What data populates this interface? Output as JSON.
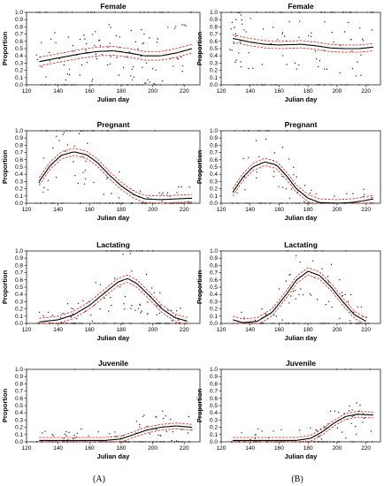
{
  "colors": {
    "fit": "#000000",
    "ci": "#e8302a",
    "points": "#222222"
  },
  "column_labels": [
    "(A)",
    "(B)"
  ],
  "chart_data": [
    {
      "id": "A-female",
      "type": "scatter",
      "title": "Female",
      "xlabel": "Julian day",
      "ylabel": "Proportion",
      "xlim": [
        120,
        230
      ],
      "ylim": [
        0,
        1
      ],
      "xticks": [
        120,
        140,
        160,
        180,
        200,
        220
      ],
      "yticks": [
        0.0,
        0.1,
        0.2,
        0.3,
        0.4,
        0.5,
        0.6,
        0.7,
        0.8,
        0.9,
        1.0
      ],
      "fit": [
        [
          128,
          0.32
        ],
        [
          140,
          0.37
        ],
        [
          155,
          0.43
        ],
        [
          165,
          0.46
        ],
        [
          175,
          0.47
        ],
        [
          185,
          0.44
        ],
        [
          195,
          0.4
        ],
        [
          205,
          0.4
        ],
        [
          215,
          0.44
        ],
        [
          225,
          0.5
        ]
      ],
      "ci_width": 0.06,
      "scatter": {
        "x_range": [
          126,
          225
        ],
        "n": 160,
        "seed": 11,
        "pattern": "female_a"
      }
    },
    {
      "id": "B-female",
      "type": "scatter",
      "title": "Female",
      "xlabel": "Julian day",
      "ylabel": "Proportion",
      "xlim": [
        120,
        230
      ],
      "ylim": [
        0,
        1
      ],
      "xticks": [
        120,
        140,
        160,
        180,
        200,
        220
      ],
      "yticks": [
        0.0,
        0.1,
        0.2,
        0.3,
        0.4,
        0.5,
        0.6,
        0.7,
        0.8,
        0.9,
        1.0
      ],
      "fit": [
        [
          128,
          0.64
        ],
        [
          140,
          0.59
        ],
        [
          150,
          0.56
        ],
        [
          160,
          0.55
        ],
        [
          175,
          0.56
        ],
        [
          185,
          0.54
        ],
        [
          195,
          0.51
        ],
        [
          205,
          0.5
        ],
        [
          215,
          0.5
        ],
        [
          225,
          0.52
        ]
      ],
      "ci_width": 0.05,
      "scatter": {
        "x_range": [
          126,
          225
        ],
        "n": 130,
        "seed": 23,
        "pattern": "female_b"
      }
    },
    {
      "id": "A-pregnant",
      "type": "scatter",
      "title": "Pregnant",
      "xlabel": "Julian day",
      "ylabel": "Proportion",
      "xlim": [
        120,
        230
      ],
      "ylim": [
        0,
        1
      ],
      "xticks": [
        120,
        140,
        160,
        180,
        200,
        220
      ],
      "yticks": [
        0.0,
        0.1,
        0.2,
        0.3,
        0.4,
        0.5,
        0.6,
        0.7,
        0.8,
        0.9,
        1.0
      ],
      "fit": [
        [
          128,
          0.3
        ],
        [
          135,
          0.52
        ],
        [
          142,
          0.66
        ],
        [
          150,
          0.71
        ],
        [
          158,
          0.67
        ],
        [
          165,
          0.56
        ],
        [
          172,
          0.4
        ],
        [
          180,
          0.24
        ],
        [
          188,
          0.12
        ],
        [
          195,
          0.06
        ],
        [
          205,
          0.05
        ],
        [
          215,
          0.06
        ],
        [
          225,
          0.07
        ]
      ],
      "ci_width": 0.05,
      "scatter": {
        "x_range": [
          126,
          225
        ],
        "n": 140,
        "seed": 37,
        "pattern": "pregnant"
      }
    },
    {
      "id": "B-pregnant",
      "type": "scatter",
      "title": "Pregnant",
      "xlabel": "Julian day",
      "ylabel": "Proportion",
      "xlim": [
        120,
        230
      ],
      "ylim": [
        0,
        1
      ],
      "xticks": [
        120,
        140,
        160,
        180,
        200,
        220
      ],
      "yticks": [
        0.0,
        0.1,
        0.2,
        0.3,
        0.4,
        0.5,
        0.6,
        0.7,
        0.8,
        0.9,
        1.0
      ],
      "fit": [
        [
          128,
          0.15
        ],
        [
          135,
          0.36
        ],
        [
          142,
          0.5
        ],
        [
          150,
          0.57
        ],
        [
          158,
          0.53
        ],
        [
          165,
          0.38
        ],
        [
          172,
          0.2
        ],
        [
          180,
          0.07
        ],
        [
          188,
          0.01
        ],
        [
          200,
          0.0
        ],
        [
          210,
          0.01
        ],
        [
          220,
          0.04
        ],
        [
          225,
          0.06
        ]
      ],
      "ci_width": 0.05,
      "scatter": {
        "x_range": [
          126,
          225
        ],
        "n": 110,
        "seed": 41,
        "pattern": "pregnant"
      }
    },
    {
      "id": "A-lactating",
      "type": "scatter",
      "title": "Lactating",
      "xlabel": "Julian day",
      "ylabel": "Proportion",
      "xlim": [
        120,
        230
      ],
      "ylim": [
        0,
        1
      ],
      "xticks": [
        120,
        140,
        160,
        180,
        200,
        220
      ],
      "yticks": [
        0.0,
        0.1,
        0.2,
        0.3,
        0.4,
        0.5,
        0.6,
        0.7,
        0.8,
        0.9,
        1.0
      ],
      "fit": [
        [
          128,
          0.02
        ],
        [
          140,
          0.05
        ],
        [
          150,
          0.12
        ],
        [
          160,
          0.25
        ],
        [
          170,
          0.43
        ],
        [
          178,
          0.57
        ],
        [
          184,
          0.62
        ],
        [
          190,
          0.55
        ],
        [
          198,
          0.38
        ],
        [
          206,
          0.2
        ],
        [
          214,
          0.08
        ],
        [
          222,
          0.03
        ]
      ],
      "ci_width": 0.05,
      "scatter": {
        "x_range": [
          126,
          222
        ],
        "n": 150,
        "seed": 53,
        "pattern": "lactating"
      }
    },
    {
      "id": "B-lactating",
      "type": "scatter",
      "title": "Lactating",
      "xlabel": "Julian day",
      "ylabel": "Proportion",
      "xlim": [
        120,
        230
      ],
      "ylim": [
        0,
        1
      ],
      "xticks": [
        120,
        140,
        160,
        180,
        200,
        220
      ],
      "yticks": [
        0.0,
        0.1,
        0.2,
        0.3,
        0.4,
        0.5,
        0.6,
        0.7,
        0.8,
        0.9,
        1.0
      ],
      "fit": [
        [
          128,
          0.05
        ],
        [
          135,
          0.01
        ],
        [
          145,
          0.03
        ],
        [
          155,
          0.15
        ],
        [
          165,
          0.4
        ],
        [
          172,
          0.6
        ],
        [
          180,
          0.72
        ],
        [
          188,
          0.66
        ],
        [
          196,
          0.5
        ],
        [
          204,
          0.3
        ],
        [
          212,
          0.12
        ],
        [
          220,
          0.03
        ]
      ],
      "ci_width": 0.05,
      "scatter": {
        "x_range": [
          126,
          222
        ],
        "n": 120,
        "seed": 61,
        "pattern": "lactating"
      }
    },
    {
      "id": "A-juvenile",
      "type": "scatter",
      "title": "Juvenile",
      "xlabel": "Julian day",
      "ylabel": "Proportion",
      "xlim": [
        120,
        230
      ],
      "ylim": [
        0,
        1
      ],
      "xticks": [
        120,
        140,
        160,
        180,
        200,
        220
      ],
      "yticks": [
        0.0,
        0.1,
        0.2,
        0.3,
        0.4,
        0.5,
        0.6,
        0.7,
        0.8,
        0.9,
        1.0
      ],
      "fit": [
        [
          128,
          0.02
        ],
        [
          150,
          0.02
        ],
        [
          170,
          0.02
        ],
        [
          180,
          0.04
        ],
        [
          188,
          0.1
        ],
        [
          196,
          0.16
        ],
        [
          205,
          0.2
        ],
        [
          215,
          0.22
        ],
        [
          225,
          0.2
        ]
      ],
      "ci_width": 0.04,
      "scatter": {
        "x_range": [
          126,
          225
        ],
        "n": 160,
        "seed": 73,
        "pattern": "juvenile"
      }
    },
    {
      "id": "B-juvenile",
      "type": "scatter",
      "title": "Juvenile",
      "xlabel": "Julian day",
      "ylabel": "Proportion",
      "xlim": [
        120,
        230
      ],
      "ylim": [
        0,
        1
      ],
      "xticks": [
        120,
        140,
        160,
        180,
        200,
        220
      ],
      "yticks": [
        0.0,
        0.1,
        0.2,
        0.3,
        0.4,
        0.5,
        0.6,
        0.7,
        0.8,
        0.9,
        1.0
      ],
      "fit": [
        [
          128,
          0.02
        ],
        [
          150,
          0.02
        ],
        [
          172,
          0.02
        ],
        [
          182,
          0.05
        ],
        [
          190,
          0.14
        ],
        [
          198,
          0.26
        ],
        [
          206,
          0.35
        ],
        [
          214,
          0.38
        ],
        [
          225,
          0.37
        ]
      ],
      "ci_width": 0.04,
      "scatter": {
        "x_range": [
          126,
          225
        ],
        "n": 140,
        "seed": 89,
        "pattern": "juvenile"
      }
    }
  ]
}
